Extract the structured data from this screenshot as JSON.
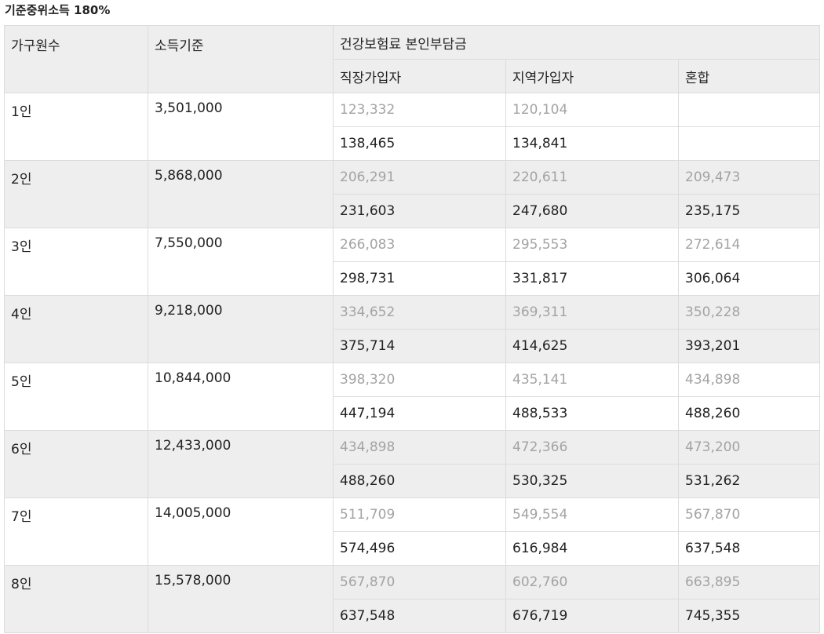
{
  "title": "기준중위소득 180%",
  "headers": {
    "household": "가구원수",
    "income": "소득기준",
    "premium": "건강보험료 본인부담금",
    "employee": "직장가입자",
    "regional": "지역가입자",
    "mixed": "혼합"
  },
  "rows": [
    {
      "household": "1인",
      "income": "3,501,000",
      "a": [
        "123,332",
        "120,104",
        ""
      ],
      "b": [
        "138,465",
        "134,841",
        ""
      ]
    },
    {
      "household": "2인",
      "income": "5,868,000",
      "a": [
        "206,291",
        "220,611",
        "209,473"
      ],
      "b": [
        "231,603",
        "247,680",
        "235,175"
      ]
    },
    {
      "household": "3인",
      "income": "7,550,000",
      "a": [
        "266,083",
        "295,553",
        "272,614"
      ],
      "b": [
        "298,731",
        "331,817",
        "306,064"
      ]
    },
    {
      "household": "4인",
      "income": "9,218,000",
      "a": [
        "334,652",
        "369,311",
        "350,228"
      ],
      "b": [
        "375,714",
        "414,625",
        "393,201"
      ]
    },
    {
      "household": "5인",
      "income": "10,844,000",
      "a": [
        "398,320",
        "435,141",
        "434,898"
      ],
      "b": [
        "447,194",
        "488,533",
        "488,260"
      ]
    },
    {
      "household": "6인",
      "income": "12,433,000",
      "a": [
        "434,898",
        "472,366",
        "473,200"
      ],
      "b": [
        "488,260",
        "530,325",
        "531,262"
      ]
    },
    {
      "household": "7인",
      "income": "14,005,000",
      "a": [
        "511,709",
        "549,554",
        "567,870"
      ],
      "b": [
        "574,496",
        "616,984",
        "637,548"
      ]
    },
    {
      "household": "8인",
      "income": "15,578,000",
      "a": [
        "567,870",
        "602,760",
        "663,895"
      ],
      "b": [
        "637,548",
        "676,719",
        "745,355"
      ]
    }
  ]
}
